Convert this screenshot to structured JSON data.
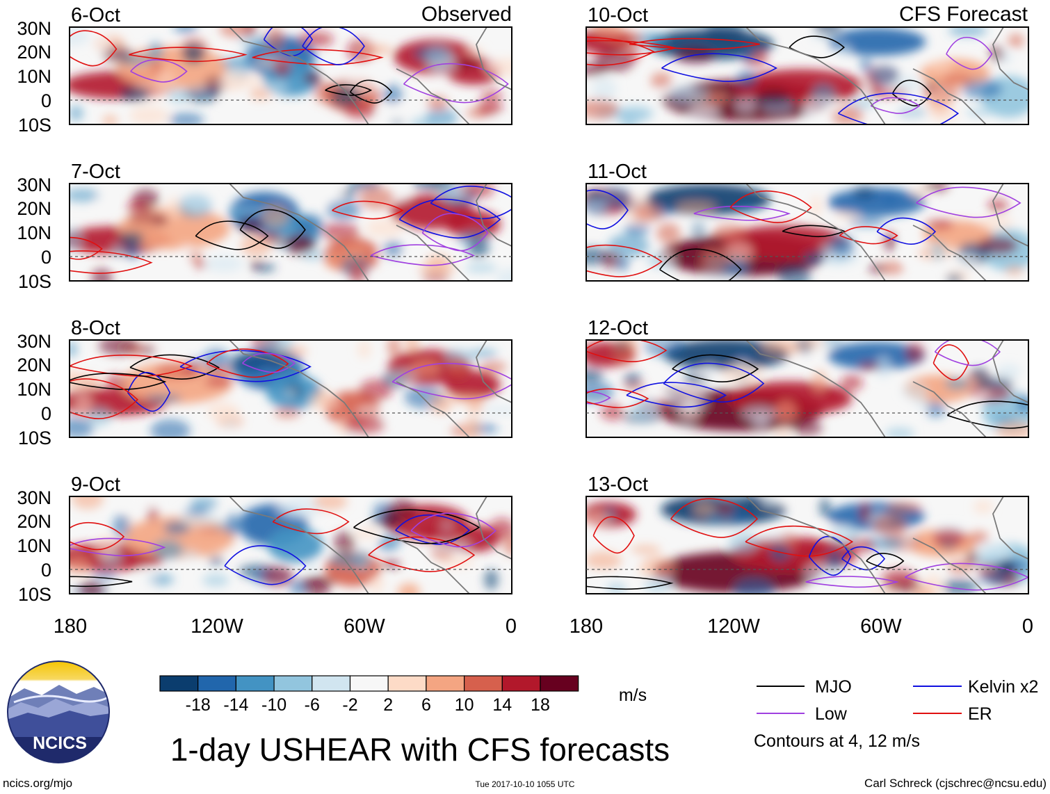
{
  "columns": {
    "left_label": "Observed",
    "right_label": "CFS Forecast"
  },
  "panels_left": [
    {
      "date": "6-Oct"
    },
    {
      "date": "7-Oct"
    },
    {
      "date": "8-Oct"
    },
    {
      "date": "9-Oct"
    }
  ],
  "panels_right": [
    {
      "date": "10-Oct"
    },
    {
      "date": "11-Oct"
    },
    {
      "date": "12-Oct"
    },
    {
      "date": "13-Oct"
    }
  ],
  "lat_labels": [
    "30N",
    "20N",
    "10N",
    "0",
    "10S"
  ],
  "lon_labels": [
    "180",
    "120W",
    "60W",
    "0"
  ],
  "colorbar": {
    "ticks": [
      "-18",
      "-14",
      "-10",
      "-6",
      "-2",
      "2",
      "6",
      "10",
      "14",
      "18"
    ],
    "colors": [
      "#0b3d6e",
      "#2166ac",
      "#4393c3",
      "#92c5de",
      "#d1e5f0",
      "#f7f7f7",
      "#fddbc7",
      "#f4a582",
      "#d6604d",
      "#b2182b",
      "#67001f"
    ],
    "units": "m/s"
  },
  "legend": {
    "items": [
      {
        "label": "MJO",
        "color": "#000000"
      },
      {
        "label": "Kelvin x2",
        "color": "#1010e0"
      },
      {
        "label": "Low",
        "color": "#a040e0"
      },
      {
        "label": "ER",
        "color": "#e01010"
      }
    ],
    "note": "Contours at 4, 12 m/s"
  },
  "logo": {
    "text": "NCICS"
  },
  "title": "1-day USHEAR with CFS forecasts",
  "footer": {
    "left": "ncics.org/mjo",
    "center": "Tue 2017-10-10 1055 UTC",
    "right": "Carl Schreck (cjschrec@ncsu.edu)"
  }
}
